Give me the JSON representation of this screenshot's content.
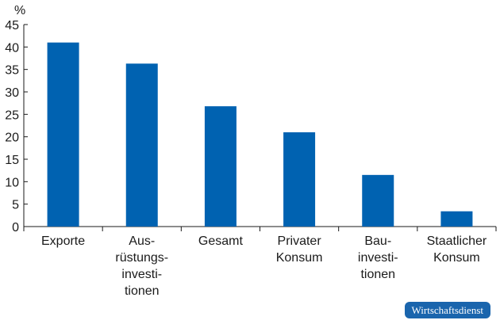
{
  "chart_data": {
    "type": "bar",
    "unit": "%",
    "categories": [
      [
        "Exporte"
      ],
      [
        "Aus-",
        "rüstungs-",
        "investi-",
        "tionen"
      ],
      [
        "Gesamt"
      ],
      [
        "Privater",
        "Konsum"
      ],
      [
        "Bau-",
        "investi-",
        "tionen"
      ],
      [
        "Staatlicher",
        "Konsum"
      ]
    ],
    "values": [
      41,
      36.3,
      26.8,
      21,
      11.5,
      3.4
    ],
    "ylim": [
      0,
      45
    ],
    "yticks": [
      0,
      5,
      10,
      15,
      20,
      25,
      30,
      35,
      40,
      45
    ],
    "bar_color": "#0062b1",
    "grid": false
  },
  "badge": {
    "text": "Wirtschaftsdienst",
    "color": "#1a65ad"
  }
}
